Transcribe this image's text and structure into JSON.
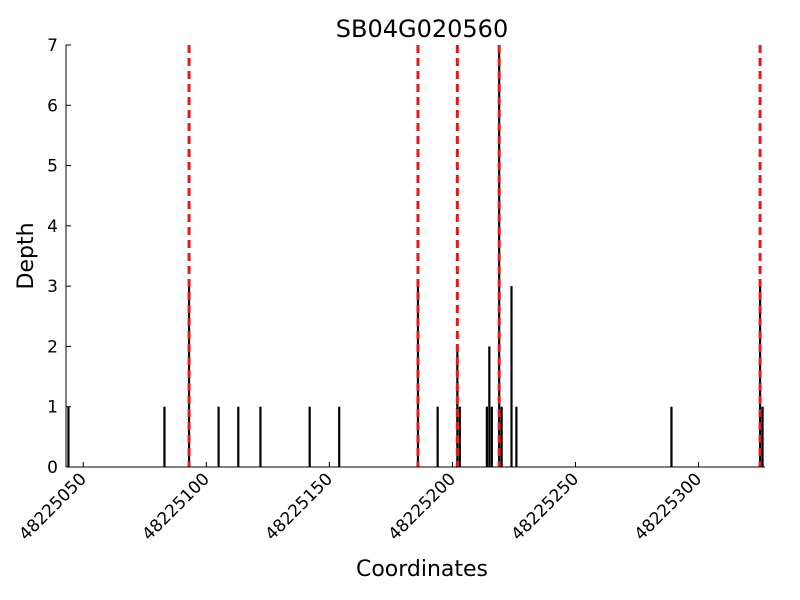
{
  "chart_data": {
    "type": "bar",
    "title": "SB04G020560",
    "xlabel": "Coordinates",
    "ylabel": "Depth",
    "xlim": [
      48225043,
      48225327
    ],
    "ylim": [
      0,
      7
    ],
    "xticks": [
      48225050,
      48225100,
      48225150,
      48225200,
      48225250,
      48225300
    ],
    "yticks": [
      0,
      1,
      2,
      3,
      4,
      5,
      6,
      7
    ],
    "bar_color": "#000000",
    "marker_line_color": "#e31a1c",
    "bars": [
      {
        "x": 48225044,
        "value": 1
      },
      {
        "x": 48225083,
        "value": 1
      },
      {
        "x": 48225093,
        "value": 3
      },
      {
        "x": 48225105,
        "value": 1
      },
      {
        "x": 48225113,
        "value": 1
      },
      {
        "x": 48225122,
        "value": 1
      },
      {
        "x": 48225142,
        "value": 1
      },
      {
        "x": 48225154,
        "value": 1
      },
      {
        "x": 48225186,
        "value": 3
      },
      {
        "x": 48225194,
        "value": 1
      },
      {
        "x": 48225202,
        "value": 2
      },
      {
        "x": 48225203,
        "value": 1
      },
      {
        "x": 48225214,
        "value": 1
      },
      {
        "x": 48225215,
        "value": 2
      },
      {
        "x": 48225216,
        "value": 1
      },
      {
        "x": 48225219,
        "value": 7
      },
      {
        "x": 48225220,
        "value": 1
      },
      {
        "x": 48225224,
        "value": 3
      },
      {
        "x": 48225226,
        "value": 1
      },
      {
        "x": 48225289,
        "value": 1
      },
      {
        "x": 48225325,
        "value": 3
      },
      {
        "x": 48225326,
        "value": 1
      }
    ],
    "marker_lines": [
      48225093,
      48225186,
      48225202,
      48225219,
      48225325
    ]
  }
}
